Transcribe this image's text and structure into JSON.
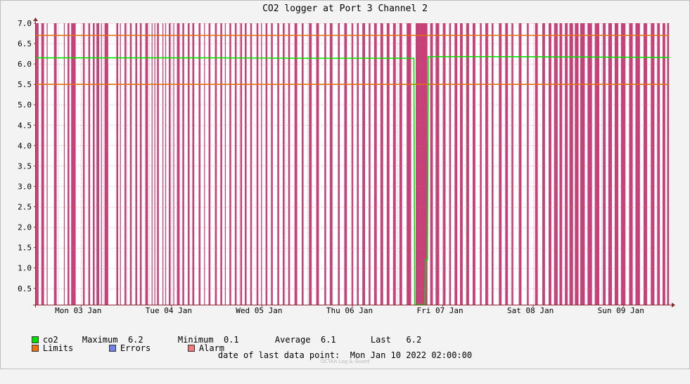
{
  "chart_data": {
    "type": "line",
    "title": "CO2 logger at Port 3 Channel 2",
    "xlabel": "",
    "ylabel": "",
    "x_ticks": [
      "Mon 03 Jan",
      "Tue 04 Jan",
      "Wed 05 Jan",
      "Thu 06 Jan",
      "Fri 07 Jan",
      "Sat 08 Jan",
      "Sun 09 Jan"
    ],
    "x_range_days": [
      0,
      7
    ],
    "x_tick_positions_days": [
      0.5,
      1.5,
      2.5,
      3.5,
      4.5,
      5.5,
      6.5
    ],
    "ylim": [
      0.1,
      7.0
    ],
    "y_ticks": [
      "0.5",
      "1.0",
      "1.5",
      "2.0",
      "2.5",
      "3.0",
      "3.5",
      "4.0",
      "4.5",
      "5.0",
      "5.5",
      "6.0",
      "6.5",
      "7.0"
    ],
    "grid": true,
    "series": [
      {
        "name": "co2",
        "color": "#00e000",
        "points": [
          [
            0.0,
            6.15
          ],
          [
            1.0,
            6.15
          ],
          [
            2.0,
            6.15
          ],
          [
            3.0,
            6.14
          ],
          [
            4.18,
            6.14
          ],
          [
            4.19,
            0.1
          ],
          [
            4.3,
            0.1
          ],
          [
            4.31,
            1.2
          ],
          [
            4.33,
            1.2
          ],
          [
            4.34,
            6.18
          ],
          [
            5.0,
            6.18
          ],
          [
            6.0,
            6.17
          ],
          [
            7.0,
            6.16
          ]
        ]
      }
    ],
    "limits": {
      "upper": 6.7,
      "lower": 5.5,
      "color": "#e07010"
    },
    "alarm_color": "#c8407a",
    "alarm_intervals_days": [
      [
        0.0,
        0.03
      ],
      [
        0.06,
        0.09
      ],
      [
        0.12,
        0.13
      ],
      [
        0.2,
        0.23
      ],
      [
        0.31,
        0.32
      ],
      [
        0.35,
        0.37
      ],
      [
        0.39,
        0.44
      ],
      [
        0.52,
        0.54
      ],
      [
        0.58,
        0.6
      ],
      [
        0.63,
        0.65
      ],
      [
        0.67,
        0.7
      ],
      [
        0.72,
        0.73
      ],
      [
        0.76,
        0.8
      ],
      [
        0.89,
        0.91
      ],
      [
        0.93,
        0.94
      ],
      [
        0.98,
        1.0
      ],
      [
        1.04,
        1.06
      ],
      [
        1.1,
        1.12
      ],
      [
        1.15,
        1.17
      ],
      [
        1.21,
        1.24
      ],
      [
        1.28,
        1.29
      ],
      [
        1.31,
        1.32
      ],
      [
        1.34,
        1.36
      ],
      [
        1.4,
        1.41
      ],
      [
        1.43,
        1.44
      ],
      [
        1.47,
        1.49
      ],
      [
        1.52,
        1.53
      ],
      [
        1.56,
        1.59
      ],
      [
        1.62,
        1.64
      ],
      [
        1.68,
        1.7
      ],
      [
        1.73,
        1.75
      ],
      [
        1.8,
        1.82
      ],
      [
        1.86,
        1.87
      ],
      [
        1.91,
        1.93
      ],
      [
        1.98,
        2.0
      ],
      [
        2.04,
        2.06
      ],
      [
        2.09,
        2.1
      ],
      [
        2.14,
        2.16
      ],
      [
        2.2,
        2.22
      ],
      [
        2.26,
        2.28
      ],
      [
        2.31,
        2.33
      ],
      [
        2.37,
        2.39
      ],
      [
        2.44,
        2.46
      ],
      [
        2.49,
        2.5
      ],
      [
        2.54,
        2.56
      ],
      [
        2.6,
        2.62
      ],
      [
        2.67,
        2.69
      ],
      [
        2.73,
        2.75
      ],
      [
        2.79,
        2.81
      ],
      [
        2.86,
        2.89
      ],
      [
        2.94,
        2.96
      ],
      [
        3.02,
        3.05
      ],
      [
        3.1,
        3.13
      ],
      [
        3.19,
        3.21
      ],
      [
        3.25,
        3.28
      ],
      [
        3.34,
        3.36
      ],
      [
        3.41,
        3.44
      ],
      [
        3.49,
        3.51
      ],
      [
        3.55,
        3.57
      ],
      [
        3.61,
        3.64
      ],
      [
        3.68,
        3.7
      ],
      [
        3.74,
        3.77
      ],
      [
        3.81,
        3.84
      ],
      [
        3.88,
        3.91
      ],
      [
        3.95,
        3.98
      ],
      [
        4.02,
        4.05
      ],
      [
        4.1,
        4.15
      ],
      [
        4.2,
        4.33
      ],
      [
        4.36,
        4.39
      ],
      [
        4.42,
        4.46
      ],
      [
        4.5,
        4.53
      ],
      [
        4.57,
        4.59
      ],
      [
        4.63,
        4.66
      ],
      [
        4.69,
        4.72
      ],
      [
        4.76,
        4.79
      ],
      [
        4.83,
        4.86
      ],
      [
        4.91,
        4.93
      ],
      [
        4.97,
        5.0
      ],
      [
        5.04,
        5.06
      ],
      [
        5.12,
        5.15
      ],
      [
        5.19,
        5.22
      ],
      [
        5.26,
        5.28
      ],
      [
        5.34,
        5.37
      ],
      [
        5.43,
        5.45
      ],
      [
        5.52,
        5.55
      ],
      [
        5.6,
        5.63
      ],
      [
        5.67,
        5.7
      ],
      [
        5.73,
        5.77
      ],
      [
        5.79,
        5.82
      ],
      [
        5.85,
        5.88
      ],
      [
        5.9,
        5.94
      ],
      [
        5.96,
        6.0
      ],
      [
        6.02,
        6.07
      ],
      [
        6.1,
        6.15
      ],
      [
        6.18,
        6.23
      ],
      [
        6.27,
        6.3
      ],
      [
        6.33,
        6.37
      ],
      [
        6.4,
        6.44
      ],
      [
        6.47,
        6.52
      ],
      [
        6.56,
        6.6
      ],
      [
        6.63,
        6.68
      ],
      [
        6.72,
        6.76
      ],
      [
        6.8,
        6.84
      ],
      [
        6.87,
        6.9
      ],
      [
        6.93,
        6.96
      ],
      [
        6.98,
        7.0
      ]
    ]
  },
  "legend": {
    "row1": [
      {
        "label": "co2",
        "color": "#00e000"
      },
      {
        "label": "Maximum",
        "value": "6.2"
      },
      {
        "label": "Minimum",
        "value": "0.1"
      },
      {
        "label": "Average",
        "value": "6.1"
      },
      {
        "label": "Last",
        "value": "6.2"
      }
    ],
    "row2": [
      {
        "label": "Limits",
        "color": "#f07010"
      },
      {
        "label": "Errors",
        "color": "#7080e8"
      },
      {
        "label": "Alarm",
        "color": "#f07878"
      }
    ]
  },
  "footer": {
    "label": "date of last data point:",
    "value": "Mon Jan 10 2022 02:00:00"
  },
  "credit": "OCTAA Log & Guard"
}
